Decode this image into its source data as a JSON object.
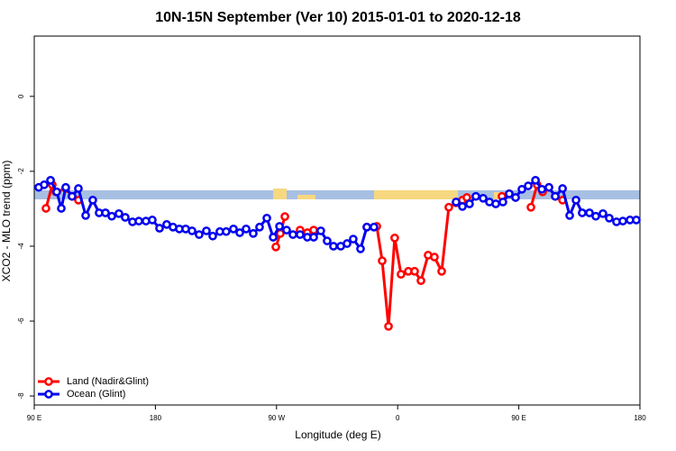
{
  "chart_data": {
    "type": "line",
    "title": "10N-15N September (Ver 10)   2015-01-01 to 2020-12-18",
    "x_label": "Longitude (deg E)",
    "y_label": "XCO2 - MLO trend (ppm)",
    "xlim": [
      90,
      540
    ],
    "ylim": [
      -8.24,
      1.61
    ],
    "xticks": [
      {
        "value": 90,
        "label": "90 E"
      },
      {
        "value": 180,
        "label": "180"
      },
      {
        "value": 270,
        "label": "90 W"
      },
      {
        "value": 360,
        "label": "0"
      },
      {
        "value": 450,
        "label": "90 E"
      },
      {
        "value": 540,
        "label": "180"
      }
    ],
    "yticks": [
      0,
      -2,
      -4,
      -6,
      -8
    ],
    "legend": "bottom-left",
    "series": [
      {
        "name": "Land (Nadir&Glint)",
        "color": "#ff0000",
        "x": [
          98.7,
          103.4,
          106.1,
          113.4,
          118.1,
          122.8,
          200,
          269.5,
          272.8,
          276.2,
          280,
          287.5,
          292.9,
          297.6,
          370,
          337.1,
          344.5,
          348.5,
          353.2,
          357.8,
          362.5,
          367.9,
          372.6,
          377.3,
          382.6,
          387.3,
          392.7,
          398.0,
          403.4,
          408.1,
          411.4,
          420,
          437.5,
          442.9,
          450,
          459.0,
          463.6,
          467.7,
          472.4,
          477.1,
          482.5
        ],
        "values": [
          -2.99,
          -2.36,
          -2.55,
          -2.46,
          -2.67,
          -2.77,
          null,
          -4.02,
          -3.66,
          -3.21,
          null,
          -3.57,
          -3.64,
          -3.57,
          null,
          -3.49,
          -3.47,
          -4.39,
          -6.14,
          -3.78,
          -4.75,
          -4.67,
          -4.67,
          -4.92,
          -4.24,
          -4.29,
          -4.67,
          -2.96,
          -2.84,
          -2.77,
          -2.7,
          null,
          -2.67,
          -2.6,
          null,
          -2.96,
          -2.36,
          -2.55,
          -2.43,
          -2.67,
          -2.77
        ]
      },
      {
        "name": "Ocean (Glint)",
        "color": "#0000ee",
        "x": [
          93.3,
          97.4,
          102.1,
          106.7,
          110.1,
          113.4,
          118.1,
          122.8,
          128.2,
          133.5,
          138.2,
          142.9,
          147.6,
          152.9,
          157.6,
          163.0,
          167.7,
          173.0,
          177.7,
          183.1,
          188.4,
          193.1,
          197.8,
          202.5,
          207.2,
          212.5,
          217.9,
          222.6,
          227.9,
          232.6,
          238.0,
          242.7,
          247.4,
          252.7,
          257.4,
          262.8,
          267.5,
          272.2,
          277.5,
          282.2,
          287.5,
          292.9,
          297.6,
          302.9,
          307.6,
          312.3,
          317.7,
          322.4,
          327.0,
          332.4,
          337.1,
          342.4,
          372,
          403.4,
          408.1,
          413.4,
          418.1,
          423.5,
          428.2,
          432.9,
          438.2,
          442.9,
          447.6,
          452.3,
          457.0,
          462.4,
          467.1,
          472.4,
          477.1,
          482.5,
          487.8,
          492.5,
          497.1,
          502.5,
          507.2,
          512.5,
          517.2,
          522.6,
          527.3,
          532.6,
          537.3
        ],
        "values": [
          -2.43,
          -2.36,
          -2.24,
          -2.55,
          -2.99,
          -2.43,
          -2.67,
          -2.46,
          -3.18,
          -2.77,
          -3.11,
          -3.11,
          -3.2,
          -3.13,
          -3.23,
          -3.35,
          -3.33,
          -3.33,
          -3.3,
          -3.52,
          -3.42,
          -3.49,
          -3.54,
          -3.54,
          -3.59,
          -3.69,
          -3.59,
          -3.73,
          -3.61,
          -3.61,
          -3.54,
          -3.64,
          -3.54,
          -3.66,
          -3.49,
          -3.25,
          -3.76,
          -3.47,
          -3.57,
          -3.69,
          -3.69,
          -3.76,
          -3.76,
          -3.59,
          -3.86,
          -4.0,
          -4.0,
          -3.93,
          -3.81,
          -4.07,
          -3.49,
          -3.49,
          null,
          -2.82,
          -2.94,
          -2.87,
          -2.67,
          -2.72,
          -2.82,
          -2.87,
          -2.82,
          -2.6,
          -2.7,
          -2.48,
          -2.39,
          -2.24,
          -2.48,
          -2.43,
          -2.67,
          -2.46,
          -3.18,
          -2.77,
          -3.11,
          -3.11,
          -3.2,
          -3.13,
          -3.25,
          -3.35,
          -3.33,
          -3.3,
          -3.3
        ]
      }
    ]
  }
}
